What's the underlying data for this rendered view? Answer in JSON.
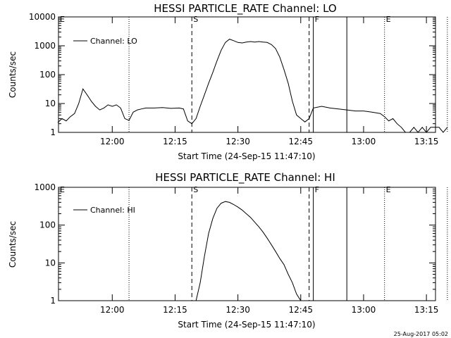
{
  "footer": {
    "timestamp": "25-Aug-2017 05:02"
  },
  "chart_data": [
    {
      "type": "line",
      "title": "HESSI PARTICLE_RATE Channel: LO",
      "xlabel": "Start Time (24-Sep-15 11:47:10)",
      "ylabel": "Counts/sec",
      "yscale": "log",
      "xlim_minutes_after_start": [
        0,
        90
      ],
      "ylim": [
        1,
        10000
      ],
      "x_ticks": [
        "12:00",
        "12:15",
        "12:30",
        "12:45",
        "13:00",
        "13:15"
      ],
      "y_ticks": [
        "1",
        "10",
        "100",
        "1000",
        "10000"
      ],
      "legend": {
        "entries": [
          "Channel: LO"
        ],
        "placement": "top-left"
      },
      "markers": [
        {
          "label": "E",
          "time": "11:47:10",
          "style": "dotted"
        },
        {
          "label": "",
          "time": "12:04",
          "style": "dotted"
        },
        {
          "label": "S",
          "time": "12:19",
          "style": "dashed"
        },
        {
          "label": "",
          "time": "12:47",
          "style": "dashed"
        },
        {
          "label": "F",
          "time": "12:48",
          "style": "solid"
        },
        {
          "label": "",
          "time": "12:56",
          "style": "solid"
        },
        {
          "label": "E",
          "time": "13:05",
          "style": "dotted"
        },
        {
          "label": "",
          "time": "13:20",
          "style": "dotted"
        }
      ],
      "series": [
        {
          "name": "Channel: LO",
          "points": [
            [
              "11:47",
              2.2
            ],
            [
              "11:48",
              3.0
            ],
            [
              "11:49",
              2.5
            ],
            [
              "11:50",
              3.5
            ],
            [
              "11:51",
              4.5
            ],
            [
              "11:52",
              10
            ],
            [
              "11:53",
              32
            ],
            [
              "11:54",
              20
            ],
            [
              "11:55",
              12
            ],
            [
              "11:56",
              8
            ],
            [
              "11:57",
              6
            ],
            [
              "11:58",
              7
            ],
            [
              "11:59",
              9
            ],
            [
              "12:00",
              8
            ],
            [
              "12:01",
              9
            ],
            [
              "12:02",
              7
            ],
            [
              "12:03",
              3
            ],
            [
              "12:04",
              2.6
            ],
            [
              "12:05",
              5
            ],
            [
              "12:06",
              6
            ],
            [
              "12:07",
              6.5
            ],
            [
              "12:08",
              7
            ],
            [
              "12:10",
              7
            ],
            [
              "12:12",
              7.2
            ],
            [
              "12:14",
              6.8
            ],
            [
              "12:16",
              7
            ],
            [
              "12:17",
              6.5
            ],
            [
              "12:18",
              2.5
            ],
            [
              "12:19",
              2.0
            ],
            [
              "12:20",
              3.0
            ],
            [
              "12:21",
              8
            ],
            [
              "12:22",
              20
            ],
            [
              "12:23",
              50
            ],
            [
              "12:24",
              120
            ],
            [
              "12:25",
              300
            ],
            [
              "12:26",
              700
            ],
            [
              "12:27",
              1300
            ],
            [
              "12:28",
              1700
            ],
            [
              "12:29",
              1500
            ],
            [
              "12:30",
              1300
            ],
            [
              "12:31",
              1250
            ],
            [
              "12:32",
              1350
            ],
            [
              "12:33",
              1400
            ],
            [
              "12:34",
              1350
            ],
            [
              "12:35",
              1400
            ],
            [
              "12:36",
              1350
            ],
            [
              "12:37",
              1300
            ],
            [
              "12:38",
              1100
            ],
            [
              "12:39",
              800
            ],
            [
              "12:40",
              400
            ],
            [
              "12:41",
              150
            ],
            [
              "12:42",
              50
            ],
            [
              "12:43",
              12
            ],
            [
              "12:44",
              4
            ],
            [
              "12:45",
              3
            ],
            [
              "12:46",
              2.3
            ],
            [
              "12:47",
              3.0
            ],
            [
              "12:48",
              7
            ],
            [
              "12:50",
              8
            ],
            [
              "12:52",
              7
            ],
            [
              "12:54",
              6.5
            ],
            [
              "12:56",
              6
            ],
            [
              "12:58",
              5.5
            ],
            [
              "13:00",
              5.5
            ],
            [
              "13:02",
              5
            ],
            [
              "13:04",
              4.5
            ],
            [
              "13:05",
              3.5
            ],
            [
              "13:06",
              2.5
            ],
            [
              "13:07",
              3.0
            ],
            [
              "13:08",
              2.0
            ],
            [
              "13:09",
              1.5
            ],
            [
              "13:10",
              1.0
            ],
            [
              "13:11",
              1.0
            ],
            [
              "13:12",
              1.5
            ],
            [
              "13:13",
              1.0
            ],
            [
              "13:14",
              1.5
            ],
            [
              "13:15",
              1.0
            ],
            [
              "13:16",
              1.5
            ],
            [
              "13:18",
              1.5
            ],
            [
              "13:19",
              1.0
            ],
            [
              "13:20",
              1.5
            ]
          ]
        }
      ]
    },
    {
      "type": "line",
      "title": "HESSI PARTICLE_RATE Channel: HI",
      "xlabel": "Start Time (24-Sep-15 11:47:10)",
      "ylabel": "Counts/sec",
      "yscale": "log",
      "xlim_minutes_after_start": [
        0,
        90
      ],
      "ylim": [
        1,
        1000
      ],
      "x_ticks": [
        "12:00",
        "12:15",
        "12:30",
        "12:45",
        "13:00",
        "13:15"
      ],
      "y_ticks": [
        "1",
        "10",
        "100",
        "1000"
      ],
      "legend": {
        "entries": [
          "Channel: HI"
        ],
        "placement": "top-left"
      },
      "markers": [
        {
          "label": "E",
          "time": "11:47:10",
          "style": "dotted"
        },
        {
          "label": "",
          "time": "12:04",
          "style": "dotted"
        },
        {
          "label": "S",
          "time": "12:19",
          "style": "dashed"
        },
        {
          "label": "",
          "time": "12:47",
          "style": "dashed"
        },
        {
          "label": "F",
          "time": "12:48",
          "style": "solid"
        },
        {
          "label": "",
          "time": "12:56",
          "style": "solid"
        },
        {
          "label": "E",
          "time": "13:05",
          "style": "dotted"
        },
        {
          "label": "",
          "time": "13:20",
          "style": "dotted"
        }
      ],
      "series": [
        {
          "name": "Channel: HI",
          "points": [
            [
              "12:20",
              1.0
            ],
            [
              "12:21",
              3
            ],
            [
              "12:22",
              15
            ],
            [
              "12:23",
              60
            ],
            [
              "12:24",
              150
            ],
            [
              "12:25",
              280
            ],
            [
              "12:26",
              380
            ],
            [
              "12:27",
              420
            ],
            [
              "12:28",
              400
            ],
            [
              "12:29",
              350
            ],
            [
              "12:30",
              300
            ],
            [
              "12:31",
              250
            ],
            [
              "12:32",
              200
            ],
            [
              "12:33",
              160
            ],
            [
              "12:34",
              120
            ],
            [
              "12:35",
              90
            ],
            [
              "12:36",
              65
            ],
            [
              "12:37",
              45
            ],
            [
              "12:38",
              30
            ],
            [
              "12:39",
              20
            ],
            [
              "12:40",
              13
            ],
            [
              "12:41",
              9
            ],
            [
              "12:42",
              5
            ],
            [
              "12:43",
              3
            ],
            [
              "12:44",
              1.5
            ],
            [
              "12:45",
              1.0
            ]
          ]
        }
      ]
    }
  ]
}
